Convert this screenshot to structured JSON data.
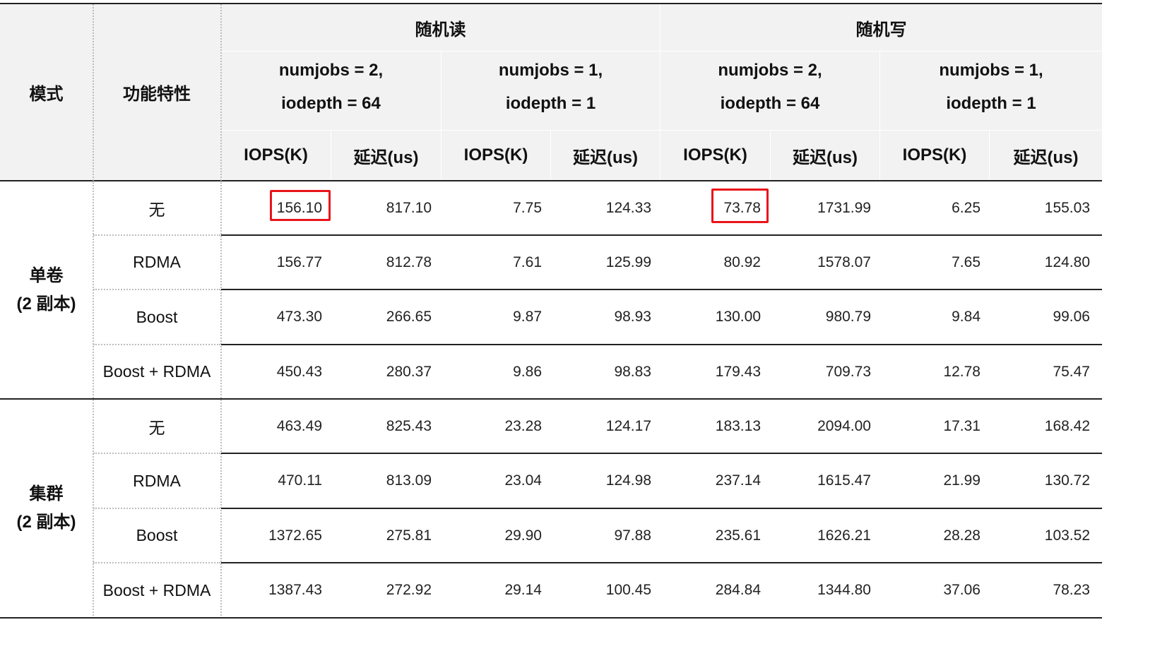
{
  "header": {
    "mode_label": "模式",
    "feature_label": "功能特性",
    "groups": [
      {
        "label": "随机读"
      },
      {
        "label": "随机写"
      }
    ],
    "subgroups": [
      {
        "line1": "numjobs = 2,",
        "line2": "iodepth = 64"
      },
      {
        "line1": "numjobs = 1,",
        "line2": "iodepth = 1"
      },
      {
        "line1": "numjobs = 2,",
        "line2": "iodepth = 64"
      },
      {
        "line1": "numjobs = 1,",
        "line2": "iodepth = 1"
      }
    ],
    "metrics": [
      "IOPS(K)",
      "延迟(us)",
      "IOPS(K)",
      "延迟(us)",
      "IOPS(K)",
      "延迟(us)",
      "IOPS(K)",
      "延迟(us)"
    ]
  },
  "sections": [
    {
      "mode_line1": "单卷",
      "mode_line2": "(2 副本)",
      "rows": [
        {
          "feature": "无",
          "values": [
            "156.10",
            "817.10",
            "7.75",
            "124.33",
            "73.78",
            "1731.99",
            "6.25",
            "155.03"
          ]
        },
        {
          "feature": "RDMA",
          "values": [
            "156.77",
            "812.78",
            "7.61",
            "125.99",
            "80.92",
            "1578.07",
            "7.65",
            "124.80"
          ]
        },
        {
          "feature": "Boost",
          "values": [
            "473.30",
            "266.65",
            "9.87",
            "98.93",
            "130.00",
            "980.79",
            "9.84",
            "99.06"
          ]
        },
        {
          "feature": "Boost + RDMA",
          "values": [
            "450.43",
            "280.37",
            "9.86",
            "98.83",
            "179.43",
            "709.73",
            "12.78",
            "75.47"
          ]
        }
      ]
    },
    {
      "mode_line1": "集群",
      "mode_line2": "(2 副本)",
      "rows": [
        {
          "feature": "无",
          "values": [
            "463.49",
            "825.43",
            "23.28",
            "124.17",
            "183.13",
            "2094.00",
            "17.31",
            "168.42"
          ]
        },
        {
          "feature": "RDMA",
          "values": [
            "470.11",
            "813.09",
            "23.04",
            "124.98",
            "237.14",
            "1615.47",
            "21.99",
            "130.72"
          ]
        },
        {
          "feature": "Boost",
          "values": [
            "1372.65",
            "275.81",
            "29.90",
            "97.88",
            "235.61",
            "1626.21",
            "28.28",
            "103.52"
          ]
        },
        {
          "feature": "Boost + RDMA",
          "values": [
            "1387.43",
            "272.92",
            "29.14",
            "100.45",
            "284.84",
            "1344.80",
            "37.06",
            "78.23"
          ]
        }
      ]
    }
  ],
  "highlight_color": "#e8141a"
}
